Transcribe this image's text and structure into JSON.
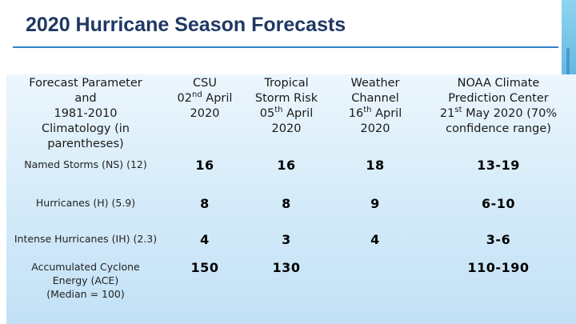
{
  "title": "2020 Hurricane Season Forecasts",
  "table": {
    "headers": {
      "param": [
        "Forecast Parameter",
        "and",
        "1981-2010",
        "Climatology (in",
        "parentheses)"
      ],
      "csu": {
        "l1": "CSU",
        "l2a": "02",
        "l2sup": "nd",
        "l2b": " April",
        "l3": "2020"
      },
      "tsr": {
        "l1": "Tropical",
        "l2": "Storm Risk",
        "l3a": "05",
        "l3sup": "th",
        "l3b": " April",
        "l4": "2020"
      },
      "twc": {
        "l1": "Weather",
        "l2": "Channel",
        "l3a": "16",
        "l3sup": "th",
        "l3b": " April",
        "l4": "2020"
      },
      "noaa": {
        "l1": "NOAA Climate",
        "l2": "Prediction Center",
        "l3a": "21",
        "l3sup": "st",
        "l3b": " May 2020 (70%",
        "l4": "confidence range)"
      }
    },
    "rows": [
      {
        "label": [
          "Named Storms (NS) (12)"
        ],
        "csu": "16",
        "tsr": "16",
        "twc": "18",
        "noaa": "13-19"
      },
      {
        "label": [
          "Hurricanes (H) (5.9)"
        ],
        "csu": "8",
        "tsr": "8",
        "twc": "9",
        "noaa": "6-10"
      },
      {
        "label": [
          "Intense Hurricanes (IH) (2.3)"
        ],
        "csu": "4",
        "tsr": "3",
        "twc": "4",
        "noaa": "3-6"
      },
      {
        "label": [
          "Accumulated Cyclone",
          "Energy (ACE)",
          "(Median = 100)"
        ],
        "csu": "150",
        "tsr": "130",
        "twc": "",
        "noaa": "110-190"
      }
    ]
  },
  "colors": {
    "title": "#1f3864",
    "rule": "#2f82c8",
    "accent": "#3f9ed6",
    "panel": "#d5ebf9"
  }
}
